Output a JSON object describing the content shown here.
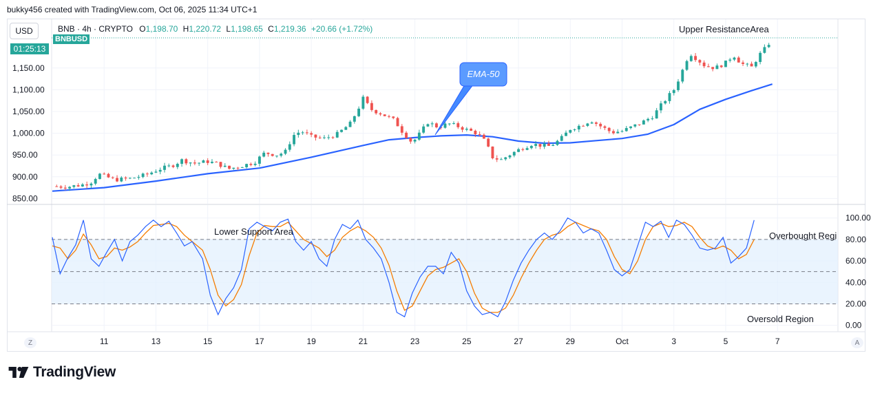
{
  "attribution": "bukky456 created with TradingView.com, Oct 06, 2025 11:34 UTC+1",
  "currency_button": "USD",
  "countdown": "01:25:13",
  "symbol_tag": "BNBUSD",
  "legend": {
    "symbol": "BNB · 4h · CRYPTO",
    "open_label": "O",
    "open": "1,198.70",
    "high_label": "H",
    "high": "1,220.72",
    "low_label": "L",
    "low": "1,198.65",
    "close_label": "C",
    "close": "1,219.36",
    "change": "+20.66 (+1.72%)"
  },
  "colors": {
    "up": "#26a69a",
    "down": "#ef5350",
    "ema": "#2962ff",
    "k_line": "#2962ff",
    "d_line": "#f57c00",
    "band": "#e3f0fd",
    "callout": "#448aff"
  },
  "footer_brand": "TradingView",
  "scale_buttons": {
    "left": "Z",
    "right": "A"
  },
  "chart_data": [
    {
      "type": "candlestick",
      "timeframe": "4h",
      "y_ticks": [
        "1,150.00",
        "1,100.00",
        "1,050.00",
        "1,000.00",
        "950.00",
        "900.00",
        "850.00"
      ],
      "y_tick_values": [
        1150,
        1100,
        1050,
        1000,
        950,
        900,
        850
      ],
      "ylim": [
        838,
        1262
      ],
      "x_ticks": [
        "11",
        "13",
        "15",
        "17",
        "19",
        "21",
        "23",
        "25",
        "27",
        "29",
        "Oct",
        "3",
        "5",
        "7"
      ],
      "x_tick_positions": [
        2,
        4,
        6,
        8,
        10,
        12,
        14,
        16,
        18,
        20,
        22,
        24,
        26,
        28
      ],
      "x_start_day": 0,
      "x_end_day": 28.5,
      "last_price_line": 1219.36,
      "price_path": [
        [
          0.0,
          878
        ],
        [
          0.6,
          877
        ],
        [
          1.2,
          882
        ],
        [
          1.5,
          888
        ],
        [
          1.8,
          906
        ],
        [
          2.4,
          893
        ],
        [
          3.0,
          896
        ],
        [
          3.6,
          904
        ],
        [
          4.1,
          917
        ],
        [
          4.6,
          925
        ],
        [
          5.0,
          938
        ],
        [
          5.5,
          931
        ],
        [
          6.0,
          935
        ],
        [
          6.4,
          930
        ],
        [
          6.8,
          918
        ],
        [
          7.3,
          925
        ],
        [
          7.8,
          933
        ],
        [
          8.2,
          955
        ],
        [
          8.7,
          950
        ],
        [
          9.0,
          958
        ],
        [
          9.3,
          995
        ],
        [
          9.6,
          1005
        ],
        [
          10.0,
          992
        ],
        [
          10.5,
          988
        ],
        [
          11.0,
          998
        ],
        [
          11.5,
          1022
        ],
        [
          11.8,
          1055
        ],
        [
          12.0,
          1080
        ],
        [
          12.3,
          1055
        ],
        [
          12.7,
          1045
        ],
        [
          13.2,
          1030
        ],
        [
          13.5,
          1005
        ],
        [
          13.9,
          978
        ],
        [
          14.2,
          1000
        ],
        [
          14.5,
          1025
        ],
        [
          14.9,
          1014
        ],
        [
          15.3,
          1022
        ],
        [
          15.7,
          1015
        ],
        [
          16.0,
          1008
        ],
        [
          16.4,
          1000
        ],
        [
          16.7,
          982
        ],
        [
          17.0,
          945
        ],
        [
          17.3,
          938
        ],
        [
          17.7,
          952
        ],
        [
          18.1,
          965
        ],
        [
          18.5,
          975
        ],
        [
          18.9,
          972
        ],
        [
          19.2,
          970
        ],
        [
          19.6,
          985
        ],
        [
          20.0,
          1010
        ],
        [
          20.4,
          1018
        ],
        [
          20.8,
          1030
        ],
        [
          21.2,
          1015
        ],
        [
          21.6,
          1002
        ],
        [
          22.0,
          1005
        ],
        [
          22.4,
          1015
        ],
        [
          22.8,
          1026
        ],
        [
          23.2,
          1040
        ],
        [
          23.6,
          1072
        ],
        [
          24.0,
          1100
        ],
        [
          24.3,
          1140
        ],
        [
          24.6,
          1185
        ],
        [
          24.9,
          1170
        ],
        [
          25.2,
          1155
        ],
        [
          25.6,
          1150
        ],
        [
          26.0,
          1162
        ],
        [
          26.3,
          1180
        ],
        [
          26.6,
          1160
        ],
        [
          27.0,
          1152
        ],
        [
          27.3,
          1180
        ],
        [
          27.6,
          1200
        ],
        [
          27.8,
          1219
        ]
      ],
      "ema_50": [
        [
          0.0,
          867
        ],
        [
          2,
          875
        ],
        [
          4,
          890
        ],
        [
          6,
          907
        ],
        [
          8,
          920
        ],
        [
          10,
          945
        ],
        [
          12,
          972
        ],
        [
          13,
          985
        ],
        [
          14,
          990
        ],
        [
          15,
          994
        ],
        [
          16,
          996
        ],
        [
          17,
          992
        ],
        [
          18,
          982
        ],
        [
          19,
          977
        ],
        [
          20,
          978
        ],
        [
          21,
          983
        ],
        [
          22,
          988
        ],
        [
          23,
          998
        ],
        [
          24,
          1020
        ],
        [
          25,
          1055
        ],
        [
          26,
          1078
        ],
        [
          27,
          1098
        ],
        [
          27.8,
          1113
        ]
      ],
      "callout": "EMA-50",
      "annotations": [
        "Upper ResistanceArea"
      ]
    },
    {
      "type": "line",
      "indicator": "Stochastic RSI",
      "y_ticks": [
        "100.00",
        "80.00",
        "60.00",
        "40.00",
        "20.00",
        "0.00"
      ],
      "y_tick_values": [
        100,
        80,
        60,
        40,
        20,
        0
      ],
      "ylim": [
        -6,
        112
      ],
      "levels": [
        80,
        50,
        20
      ],
      "band": [
        20,
        80
      ],
      "series": [
        {
          "role": "K",
          "points": [
            [
              0.0,
              82
            ],
            [
              0.3,
              48
            ],
            [
              0.6,
              63
            ],
            [
              0.9,
              75
            ],
            [
              1.2,
              98
            ],
            [
              1.5,
              62
            ],
            [
              1.8,
              55
            ],
            [
              2.1,
              68
            ],
            [
              2.4,
              80
            ],
            [
              2.7,
              60
            ],
            [
              3.0,
              78
            ],
            [
              3.3,
              84
            ],
            [
              3.6,
              92
            ],
            [
              3.9,
              98
            ],
            [
              4.2,
              92
            ],
            [
              4.5,
              97
            ],
            [
              4.8,
              86
            ],
            [
              5.1,
              74
            ],
            [
              5.4,
              78
            ],
            [
              5.8,
              62
            ],
            [
              6.1,
              28
            ],
            [
              6.4,
              10
            ],
            [
              6.7,
              25
            ],
            [
              7.0,
              35
            ],
            [
              7.3,
              52
            ],
            [
              7.6,
              90
            ],
            [
              7.9,
              96
            ],
            [
              8.2,
              92
            ],
            [
              8.5,
              88
            ],
            [
              8.8,
              96
            ],
            [
              9.1,
              99
            ],
            [
              9.4,
              78
            ],
            [
              9.7,
              70
            ],
            [
              10.0,
              78
            ],
            [
              10.3,
              62
            ],
            [
              10.6,
              55
            ],
            [
              10.9,
              80
            ],
            [
              11.2,
              94
            ],
            [
              11.5,
              90
            ],
            [
              11.8,
              98
            ],
            [
              12.1,
              80
            ],
            [
              12.4,
              72
            ],
            [
              12.7,
              62
            ],
            [
              13.0,
              40
            ],
            [
              13.3,
              12
            ],
            [
              13.6,
              8
            ],
            [
              13.9,
              30
            ],
            [
              14.2,
              45
            ],
            [
              14.5,
              55
            ],
            [
              14.8,
              55
            ],
            [
              15.1,
              48
            ],
            [
              15.4,
              68
            ],
            [
              15.7,
              58
            ],
            [
              16.0,
              32
            ],
            [
              16.3,
              18
            ],
            [
              16.6,
              10
            ],
            [
              16.9,
              12
            ],
            [
              17.2,
              8
            ],
            [
              17.5,
              22
            ],
            [
              17.8,
              42
            ],
            [
              18.1,
              58
            ],
            [
              18.4,
              70
            ],
            [
              18.7,
              80
            ],
            [
              19.0,
              86
            ],
            [
              19.3,
              80
            ],
            [
              19.6,
              88
            ],
            [
              19.9,
              100
            ],
            [
              20.2,
              96
            ],
            [
              20.5,
              86
            ],
            [
              20.8,
              90
            ],
            [
              21.1,
              86
            ],
            [
              21.4,
              70
            ],
            [
              21.7,
              52
            ],
            [
              22.0,
              46
            ],
            [
              22.3,
              52
            ],
            [
              22.6,
              74
            ],
            [
              22.9,
              96
            ],
            [
              23.2,
              92
            ],
            [
              23.5,
              97
            ],
            [
              23.8,
              82
            ],
            [
              24.1,
              98
            ],
            [
              24.4,
              94
            ],
            [
              24.7,
              84
            ],
            [
              25.0,
              72
            ],
            [
              25.3,
              70
            ],
            [
              25.6,
              72
            ],
            [
              25.9,
              82
            ],
            [
              26.2,
              58
            ],
            [
              26.5,
              64
            ],
            [
              26.8,
              72
            ],
            [
              27.1,
              98
            ]
          ]
        },
        {
          "role": "D",
          "points": [
            [
              0.0,
              74
            ],
            [
              0.3,
              72
            ],
            [
              0.6,
              62
            ],
            [
              0.9,
              70
            ],
            [
              1.2,
              85
            ],
            [
              1.5,
              75
            ],
            [
              1.8,
              62
            ],
            [
              2.1,
              64
            ],
            [
              2.4,
              72
            ],
            [
              2.7,
              70
            ],
            [
              3.0,
              73
            ],
            [
              3.3,
              78
            ],
            [
              3.6,
              86
            ],
            [
              3.9,
              93
            ],
            [
              4.2,
              94
            ],
            [
              4.5,
              95
            ],
            [
              4.8,
              92
            ],
            [
              5.1,
              84
            ],
            [
              5.4,
              78
            ],
            [
              5.8,
              70
            ],
            [
              6.1,
              52
            ],
            [
              6.4,
              28
            ],
            [
              6.7,
              18
            ],
            [
              7.0,
              24
            ],
            [
              7.3,
              38
            ],
            [
              7.6,
              65
            ],
            [
              7.9,
              86
            ],
            [
              8.2,
              93
            ],
            [
              8.5,
              92
            ],
            [
              8.8,
              92
            ],
            [
              9.1,
              96
            ],
            [
              9.4,
              88
            ],
            [
              9.7,
              80
            ],
            [
              10.0,
              76
            ],
            [
              10.3,
              72
            ],
            [
              10.6,
              64
            ],
            [
              10.9,
              70
            ],
            [
              11.2,
              82
            ],
            [
              11.5,
              88
            ],
            [
              11.8,
              92
            ],
            [
              12.1,
              88
            ],
            [
              12.4,
              82
            ],
            [
              12.7,
              72
            ],
            [
              13.0,
              56
            ],
            [
              13.3,
              32
            ],
            [
              13.6,
              14
            ],
            [
              13.9,
              18
            ],
            [
              14.2,
              32
            ],
            [
              14.5,
              46
            ],
            [
              14.8,
              52
            ],
            [
              15.1,
              54
            ],
            [
              15.4,
              58
            ],
            [
              15.7,
              62
            ],
            [
              16.0,
              50
            ],
            [
              16.3,
              30
            ],
            [
              16.6,
              16
            ],
            [
              16.9,
              12
            ],
            [
              17.2,
              12
            ],
            [
              17.5,
              16
            ],
            [
              17.8,
              28
            ],
            [
              18.1,
              44
            ],
            [
              18.4,
              58
            ],
            [
              18.7,
              70
            ],
            [
              19.0,
              80
            ],
            [
              19.3,
              84
            ],
            [
              19.6,
              86
            ],
            [
              19.9,
              92
            ],
            [
              20.2,
              96
            ],
            [
              20.5,
              93
            ],
            [
              20.8,
              90
            ],
            [
              21.1,
              88
            ],
            [
              21.4,
              80
            ],
            [
              21.7,
              64
            ],
            [
              22.0,
              52
            ],
            [
              22.3,
              48
            ],
            [
              22.6,
              60
            ],
            [
              22.9,
              80
            ],
            [
              23.2,
              92
            ],
            [
              23.5,
              95
            ],
            [
              23.8,
              92
            ],
            [
              24.1,
              93
            ],
            [
              24.4,
              96
            ],
            [
              24.7,
              92
            ],
            [
              25.0,
              82
            ],
            [
              25.3,
              74
            ],
            [
              25.6,
              71
            ],
            [
              25.9,
              74
            ],
            [
              26.2,
              70
            ],
            [
              26.5,
              62
            ],
            [
              26.8,
              66
            ],
            [
              27.1,
              80
            ]
          ]
        }
      ],
      "annotations": [
        "Lower Support Area",
        "Overbought Regi",
        "Oversold Region"
      ]
    }
  ]
}
